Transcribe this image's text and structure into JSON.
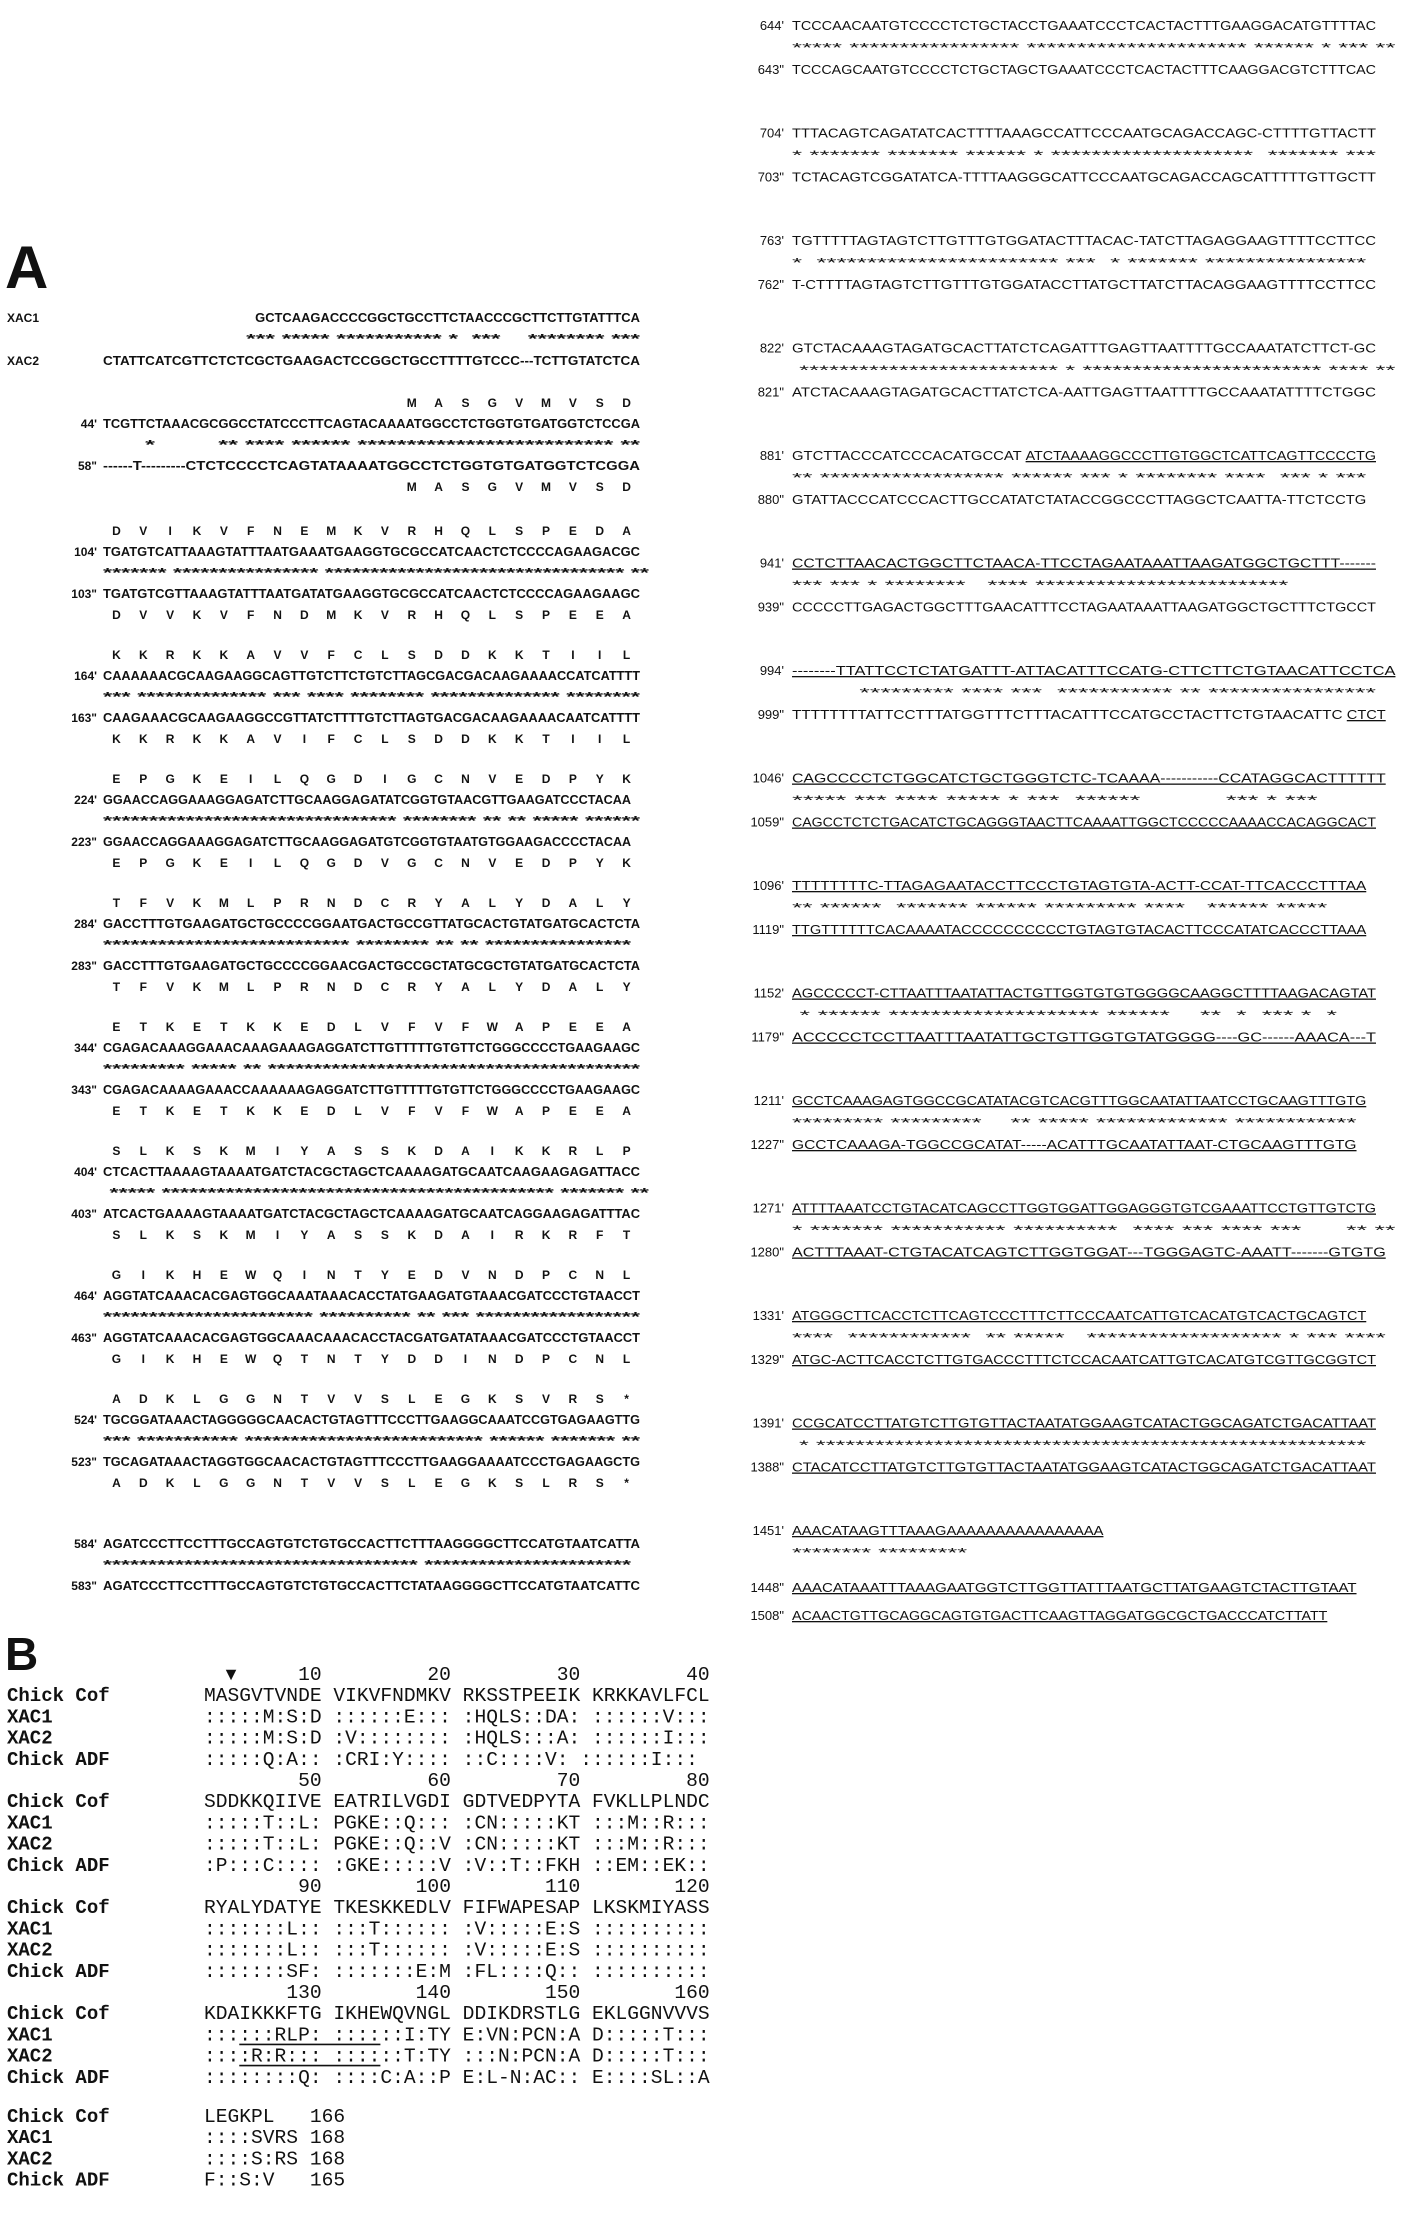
{
  "panel_a": {
    "label": "A",
    "header": {
      "xac1_label": "XAC1",
      "xac2_label": "XAC2",
      "xac1_seq": "GCTCAAGACCCCGGCTGCCTTCTAACCCGCTTCTTGTATTTCA",
      "stars": "*** ***** *********** *  ***    ******** ***",
      "xac2_seq": "CTATTCATCGTTCTCTCGCTGAAGACTCCGGCTGCCTTTTGTCCC---TCTTGTATCTCA"
    },
    "blocks": [
      {
        "n1": "44'",
        "p1": "MASGVMVSD",
        "s1": "TCGTTCTAAACGCGGCCTATCCCTTCAGTACAAAATGGCCTCTGGTGTGATGGTCTCCGA",
        "stars": "      *         ** **** ****** ************************** **",
        "n2": "58\"",
        "s2": "------T---------CTCTCCCCTCAGTATAAAATGGCCTCTGGTGTGATGGTCTCGGA",
        "p2": "MASGVMVSD"
      },
      {
        "n1": "104'",
        "p1": "DVIKVFNEMKVRHQLSPEDA",
        "s1": "TGATGTCATTAAAGTATTTAATGAAATGAAGGTGCGCCATCAACTCTCCCCAGAAGACGC",
        "stars": "******* **************** ********************************* **",
        "n2": "103\"",
        "s2": "TGATGTCGTTAAAGTATTTAATGATATGAAGGTGCGCCATCAACTCTCCCCAGAAGAAGC",
        "p2": "DVVKVFNDMKVRHQLSPEEA"
      },
      {
        "n1": "164'",
        "p1": "KKRKKAVVFCLSDDKKTIIL",
        "s1": "CAAAAAACGCAAGAAGGCAGTTGTCTTCTGTCTTAGCGACGACAAGAAAACCATCATTTT",
        "stars": "*** ************** *** **** ******** ************** ********",
        "n2": "163\"",
        "s2": "CAAGAAACGCAAGAAGGCCGTTATCTTTTGTCTTAGTGACGACAAGAAAACAATCATTTT",
        "p2": "KKRKKAVIFCLSDDKKTIIL"
      },
      {
        "n1": "224'",
        "p1": "EPGKEILQGDIGCNVEDPYK",
        "s1": "GGAACCAGGAAAGGAGATCTTGCAAGGAGATATCGGTGTAACGTTGAAGATCCCTACAA",
        "stars": "******************************** ******** ** ** ***** ******",
        "n2": "223\"",
        "s2": "GGAACCAGGAAAGGAGATCTTGCAAGGAGATGTCGGTGTAATGTGGAAGACCCCTACAA",
        "p2": "EPGKEILQGDVGCNVEDPYK"
      },
      {
        "n1": "284'",
        "p1": "TFVKMLPRNDCRYALYDALY",
        "s1": "GACCTTTGTGAAGATGCTGCCCCGGAATGACTGCCGTTATGCACTGTATGATGCACTCTA",
        "stars": "*************************** ******** ** ** ****************",
        "n2": "283\"",
        "s2": "GACCTTTGTGAAGATGCTGCCCCGGAACGACTGCCGCTATGCGCTGTATGATGCACTCTA",
        "p2": "TFVKMLPRNDCRYALYDALY"
      },
      {
        "n1": "344'",
        "p1": "ETKETKKEDLVFVFWAPEEA",
        "s1": "CGAGACAAAGGAAACAAAGAAAGAGGATCTTGTTTTTGTGTTCTGGGCCCCTGAAGAAGC",
        "stars": "********* ***** ** *****************************************",
        "n2": "343\"",
        "s2": "CGAGACAAAAGAAACCAAAAAAGAGGATCTTGTTTTTGTGTTCTGGGCCCCTGAAGAAGC",
        "p2": "ETKETKKEDLVFVFWAPEEA"
      },
      {
        "n1": "404'",
        "p1": "SLKSKMIYASSKDAIKKRLP",
        "s1": "CTCACTTAAAAGTAAAATGATCTACGCTAGCTCAAAAGATGCAATCAAGAAGAGATTACC",
        "stars": " ***** ******************************************* ******* **",
        "n2": "403\"",
        "s2": "ATCACTGAAAAGTAAAATGATCTACGCTAGCTCAAAAGATGCAATCAGGAAGAGATTTAC",
        "p2": "SLKSKMIYASSKDAIRKRFT"
      },
      {
        "n1": "464'",
        "p1": "GIKHEWQINTYEDVNDPCNL",
        "s1": "AGGTATCAAACACGAGTGGCAAATAAACACCTATGAAGATGTAAACGATCCCTGTAACCT",
        "stars": "*********************** ********** ** *** ******************",
        "n2": "463\"",
        "s2": "AGGTATCAAACACGAGTGGCAAACAAACACCTACGATGATATAAACGATCCCTGTAACCT",
        "p2": "GIKHEWQTNTYDDINDPCNL"
      },
      {
        "n1": "524'",
        "p1": "ADKLGGNTVVSLEGKSVRS*",
        "s1": "TGCGGATAAACTAGGGGGCAACACTGTAGTTTCCCTTGAAGGCAAATCCGTGAGAAGTTG",
        "stars": "*** *********** ************************** ****** ******* **",
        "n2": "523\"",
        "s2": "TGCAGATAAACTAGGTGGCAACACTGTAGTTTCCCTTGAAGGAAAATCCCTGAGAAGCTG",
        "p2": "ADKLGGNTVVSLEGKSLRS*"
      },
      {
        "n1": "584'",
        "p1": "",
        "s1": "AGATCCCTTCCTTTGCCAGTGTCTGTGCCACTTCTTTAAGGGGCTTCCATGTAATCATTA",
        "stars": "*********************************** ***********************",
        "n2": "583\"",
        "s2": "AGATCCCTTCCTTTGCCAGTGTCTGTGCCACTTCTATAAGGGGCTTCCATGTAATCATTC",
        "p2": ""
      }
    ]
  },
  "panel_a_cont": {
    "blocks": [
      {
        "n1": "644'",
        "s1": "TCCCAACAATGTCCCCTCTGCTACCTGAAATCCCTCACTACTTTGAAGGACATGTTTTAC",
        "s1_ul": "",
        "stars": "***** ***************** ********************** ****** * *** **",
        "n2": "643\"",
        "s2": "TCCCAGCAATGTCCCCTCTGCTAGCTGAAATCCCTCACTACTTTCAAGGACGTCTTTCAC",
        "s2_ul": ""
      },
      {
        "n1": "704'",
        "s1": "TTTACAGTCAGATATCACTTTTAAAGCCATTCCCAATGCAGACCAGC-CTTTTGTTACTT",
        "s1_ul": "",
        "stars": "* ******* ******* ****** * ********************  ******* ***",
        "n2": "703\"",
        "s2": "TCTACAGTCGGATATCA-TTTTAAGGGCATTCCCAATGCAGACCAGCATTTTTGTTGCTT",
        "s2_ul": ""
      },
      {
        "n1": "763'",
        "s1": "TGTTTTTAGTAGTCTTGTTTGTGGATACTTTACAC-TATCTTAGAGGAAGTTTTCCTTCC",
        "s1_ul": "",
        "stars": "*  ************************ ***  * ******* ****************",
        "n2": "762\"",
        "s2": "T-CTTTTAGTAGTCTTGTTTGTGGATACCTTATGCTTATCTTACAGGAAGTTTTCCTTCC",
        "s2_ul": ""
      },
      {
        "n1": "822'",
        "s1": "GTCTACAAAGTAGATGCACTTATCTCAGATTTGAGTTAATTTTGCCAAATATCTTCT-GC",
        "s1_ul": "",
        "stars": " ************************** * ************************ **** **",
        "n2": "821\"",
        "s2": "ATCTACAAAGTAGATGCACTTATCTCA-AATTGAGTTAATTTTGCCAAATATTTTCTGGC",
        "s2_ul": ""
      },
      {
        "n1": "881'",
        "s1": "GTCTTACCCATCCCACATGCCAT ",
        "s1_ul": "ATCTAAAAGGCCCTTGTGGCTCATTCAGTTCCCCTG",
        "stars": "** ****************** ****** *** * ******** ****  *** * ***",
        "n2": "880\"",
        "s2": "GTATTACCCATCCCACTTGCCATATCTATACCGGCCCTTAGGCTCAATTA-TTCTCCTG",
        "s2_ul": ""
      },
      {
        "n1": "941'",
        "s1": "",
        "s1_ul": "CCTCTTAACACTGGCTTCTAACA-TTCCTAGAATAAATTAAGATGGCTGCTTT-------",
        "stars": "*** *** * ********   **** *************************",
        "n2": "939\"",
        "s2": "CCCCCTTGAGACTGGCTTTGAACATTTCCTAGAATAAATTAAGATGGCTGCTTTCTGCCT",
        "s2_ul": ""
      },
      {
        "n1": "994'",
        "s1": "",
        "s1_ul": "--------TTATTCCTCTATGATTT-ATTACATTTCCATG-CTTCTTCTGTAACATTCCTCA",
        "stars": "         ********* **** ***  *********** ** ****************",
        "n2": "999\"",
        "s2": "TTTTTTTTATTCCTTTATGGTTTCTTTACATTTCCATGCCTACTTCTGTAACATTC ",
        "s2_ul": "CTCT"
      },
      {
        "n1": "1046'",
        "s1": "",
        "s1_ul": "CAGCCCCTCTGGCATCTGCTGGGTCTC-TCAAAA-----------CCATAGGCACTTTTTT",
        "stars": "***** *** **** ***** * ***  ******           *** * ***",
        "n2": "1059\"",
        "s2": "",
        "s2_ul": "CAGCCTCTCTGACATCTGCAGGGTAACTTCAAAATTGGCTCCCCCAAAACCACAGGCACT"
      },
      {
        "n1": "1096'",
        "s1": "",
        "s1_ul": "TTTTTTTTC-TTAGAGAATACCTTCCCTGTAGTGTA-ACTT-CCAT-TTCACCCTTTAA",
        "stars": "** ******  ******* ****** ********* ****   ****** *****",
        "n2": "1119\"",
        "s2": "",
        "s2_ul": "TTGTTTTTTCACAAAATACCCCCCCCCCTGTAGTGTACACTTCCCATATCACCCTTAAA"
      },
      {
        "n1": "1152'",
        "s1": "",
        "s1_ul": "AGCCCCCT-CTTAATTTAATATTACTGTTGGTGTGTGGGGCAAGGCTTTTAAGACAGTAT",
        "stars": " * ****** ******************** ******    **  *  *** *  *",
        "n2": "1179\"",
        "s2": "",
        "s2_ul": "ACCCCCTCCTTAATTTAATATTGCTGTTGGTGTATGGGG----GC------AAACA---T"
      },
      {
        "n1": "1211'",
        "s1": "",
        "s1_ul": "GCCTCAAAGAGTGGCCGCATATACGTCACGTTTGGCAATATTAATCCTGCAAGTTTGTG",
        "stars": "********* *********    ** ***** ************* ************",
        "n2": "1227\"",
        "s2": "",
        "s2_ul": "GCCTCAAAGA-TGGCCGCATAT-----ACATTTGCAATATTAAT-CTGCAAGTTTGTG"
      },
      {
        "n1": "1271'",
        "s1": "",
        "s1_ul": "ATTTTAAATCCTGTACATCAGCCTTGGTGGATTGGAGGGTGTCGAAATTCCTGTTGTCTG",
        "stars": "* ******* *********** **********  **** *** **** ***      ** **",
        "n2": "1280\"",
        "s2": "",
        "s2_ul": "ACTTTAAAT-CTGTACATCAGTCTTGGTGGAT---TGGGAGTC-AAATT-------GTGTG"
      },
      {
        "n1": "1331'",
        "s1": "",
        "s1_ul": "ATGGGCTTCACCTCTTCAGTCCCTTTCTTCCCAATCATTGTCACATGTCACTGCAGTCT",
        "stars": "****  ************  ** *****   ******************* * *** ****",
        "n2": "1329\"",
        "s2": "",
        "s2_ul": "ATGC-ACTTCACCTCTTGTGACCCTTTCTCCACAATCATTGTCACATGTCGTTGCGGTCT"
      },
      {
        "n1": "1391'",
        "s1": "",
        "s1_ul": "CCGCATCCTTATGTCTTGTGTTACTAATATGGAAGTCATACTGGCAGATCTGACATTAAT",
        "stars": " * ********************************************************",
        "n2": "1388\"",
        "s2": "",
        "s2_ul": "CTACATCCTTATGTCTTGTGTTACTAATATGGAAGTCATACTGGCAGATCTGACATTAAT"
      },
      {
        "n1": "1451'",
        "s1": "",
        "s1_ul": "AAACATAAGTTTAAAGAAAAAAAAAAAAAAAA",
        "stars": "******** *********",
        "n2": "1448\"",
        "s2": "",
        "s2_ul": "AAACATAAATTTAAAGAATGGTCTTGGTTATTTAATGCTTATGAAGTCTACTTGTAAT"
      }
    ],
    "tail": {
      "n": "1508\"",
      "s": "ACAACTGTTGCAGGCAGTGTGACTTCAAGTTAGGATGGCGCTGACCCATCTTATT"
    }
  },
  "panel_b": {
    "label": "B",
    "arrow_icon": "down-triangle",
    "row_labels": [
      "Chick Cof",
      "XAC1",
      "XAC2",
      "Chick ADF"
    ],
    "groups": [
      {
        "ruler": [
          "10",
          "20",
          "30",
          "40"
        ],
        "rows": [
          "MASGVTVNDE VIKVFNDMKV RKSSTPEEIK KRKKAVLFCL",
          ":::::M:S:D ::::::E::: :HQLS::DA: ::::::V:::",
          ":::::M:S:D :V:::::::: :HQLS:::A: ::::::I:::",
          ":::::Q:A:: :CRI:Y:::: ::C::::V: ::::::I:::"
        ]
      },
      {
        "ruler": [
          "50",
          "60",
          "70",
          "80"
        ],
        "rows": [
          "SDDKKQIIVE EATRILVGDI GDTVEDPYTA FVKLLPLNDC",
          ":::::T::L: PGKE::Q::: :CN:::::KT :::M::R:::",
          ":::::T::L: PGKE::Q::V :CN:::::KT :::M::R:::",
          ":P:::C:::: :GKE:::::V :V::T::FKH ::EM::EK::"
        ]
      },
      {
        "ruler": [
          "90",
          "100",
          "110",
          "120"
        ],
        "rows": [
          "RYALYDATYE TKESKKEDLV FIFWAPESAP LKSKMIYASS",
          ":::::::L:: :::T:::::: :V:::::E:S ::::::::::",
          ":::::::L:: :::T:::::: :V:::::E:S ::::::::::",
          ":::::::SF: :::::::E:M :FL::::Q:: ::::::::::"
        ]
      },
      {
        "ruler": [
          "130",
          "140",
          "150",
          "160"
        ],
        "rows": [
          "KDAIKKKFTG IKHEWQVNGL DDIKDRSTLG EKLGGNVVVS",
          "::::::RLP: ::::::I:TY E:VN:PCN:A D:::::T:::",
          "::::R:R::: ::::::T:TY :::N:PCN:A D:::::T:::",
          "::::::::Q: ::::C:A::P E:L-N:AC:: E::::SL::A"
        ]
      }
    ],
    "final": [
      {
        "seq": "LEGKPL",
        "count": "166"
      },
      {
        "seq": "::::SVRS",
        "count": "168"
      },
      {
        "seq": "::::S:RS",
        "count": "168"
      },
      {
        "seq": "F::S:V",
        "count": "165"
      }
    ]
  }
}
